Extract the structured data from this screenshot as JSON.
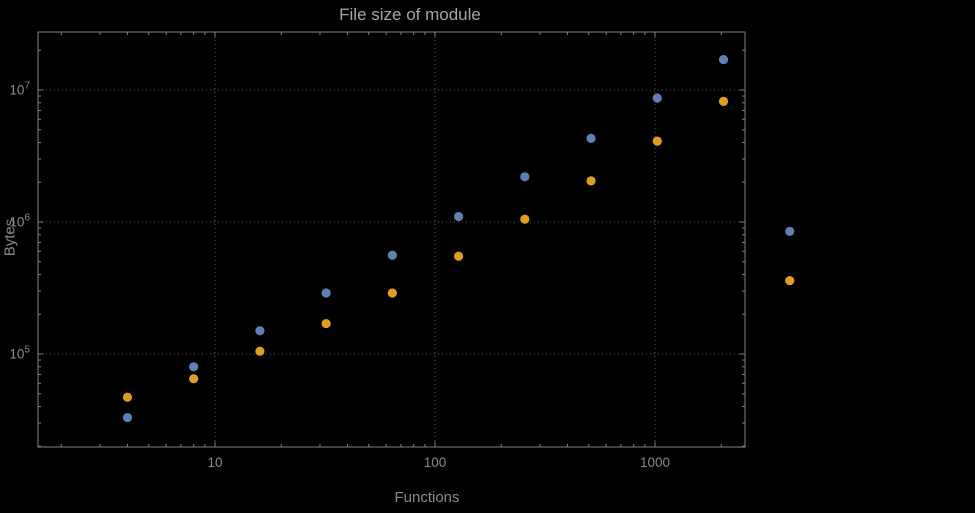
{
  "chart_data": {
    "type": "scatter",
    "title": "File size of module",
    "xlabel": "Functions",
    "ylabel": "Bytes",
    "x_scale": "log",
    "y_scale": "log",
    "xlim": [
      1.6,
      2570
    ],
    "ylim": [
      19500,
      27500000
    ],
    "grid": "dotted",
    "legend": "none",
    "background_color": "#000000",
    "frame_color": "#828282",
    "grid_color": "#5c5c5c",
    "x": [
      4,
      8,
      16,
      32,
      64,
      128,
      256,
      512,
      1024,
      2048,
      4096
    ],
    "x_ticks": [
      {
        "value": 10,
        "label": "10"
      },
      {
        "value": 100,
        "label": "100"
      },
      {
        "value": 1000,
        "label": "1000"
      }
    ],
    "y_ticks": [
      {
        "value": 100000,
        "base": "10",
        "exp": "5"
      },
      {
        "value": 1000000,
        "base": "10",
        "exp": "6"
      },
      {
        "value": 10000000,
        "base": "10",
        "exp": "7"
      }
    ],
    "series": [
      {
        "name": "blue",
        "color": "#5E81B5",
        "values": [
          33000,
          80000,
          150000,
          290000,
          560000,
          1100000,
          2200000,
          4300000,
          8700000,
          17000000,
          850000
        ]
      },
      {
        "name": "orange",
        "color": "#E19C24",
        "values": [
          47000,
          65000,
          105000,
          170000,
          290000,
          550000,
          1050000,
          2050000,
          4100000,
          8200000,
          360000
        ]
      }
    ]
  }
}
